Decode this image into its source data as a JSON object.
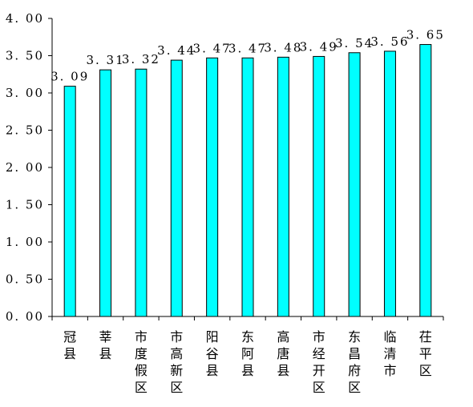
{
  "chart_data": {
    "type": "bar",
    "categories": [
      [
        "冠",
        "县"
      ],
      [
        "莘",
        "县"
      ],
      [
        "市",
        "度",
        "假",
        "区"
      ],
      [
        "市",
        "高",
        "新",
        "区"
      ],
      [
        "阳",
        "谷",
        "县"
      ],
      [
        "东",
        "阿",
        "县"
      ],
      [
        "高",
        "唐",
        "县"
      ],
      [
        "市",
        "经",
        "开",
        "区"
      ],
      [
        "东",
        "昌",
        "府",
        "区"
      ],
      [
        "临",
        "清",
        "市"
      ],
      [
        "茌",
        "平",
        "区"
      ]
    ],
    "values": [
      3.09,
      3.31,
      3.32,
      3.44,
      3.47,
      3.47,
      3.48,
      3.49,
      3.54,
      3.56,
      3.65
    ],
    "value_labels": [
      "3. 09",
      "3. 31",
      "3. 32",
      "3. 44",
      "3. 47",
      "3. 47",
      "3. 48",
      "3. 49",
      "3. 54",
      "3. 56",
      "3. 65"
    ],
    "y_ticks": [
      0,
      0.5,
      1.0,
      1.5,
      2.0,
      2.5,
      3.0,
      3.5,
      4.0
    ],
    "y_tick_labels": [
      "0. 00",
      "0. 50",
      "1. 00",
      "1. 50",
      "2. 00",
      "2. 50",
      "3. 00",
      "3. 50",
      "4. 00"
    ],
    "ylim": [
      0,
      4.0
    ],
    "grid": false,
    "legend": "none",
    "bar_color": "#00ffff",
    "bar_stroke": "#000000"
  }
}
